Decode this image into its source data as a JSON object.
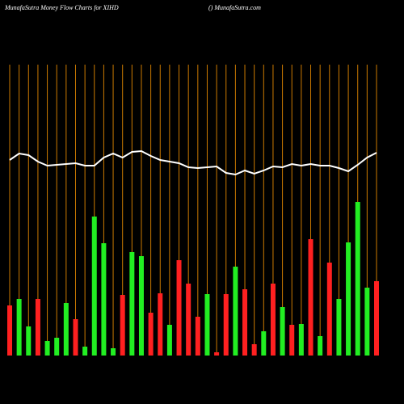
{
  "chart_data": {
    "type": "bar",
    "title": "MunafaSutra  Money Flow  Charts for XIHD",
    "subtitle": "() MunafaSutra.com",
    "ylim": [
      0,
      260
    ],
    "gridline_color": "#cc7a00",
    "series": [
      {
        "name": "Money Flow",
        "type": "bar",
        "values": [
          62,
          70,
          36,
          70,
          18,
          22,
          65,
          45,
          11,
          172,
          139,
          9,
          75,
          128,
          123,
          53,
          77,
          38,
          118,
          89,
          48,
          76,
          4,
          76,
          110,
          82,
          14,
          30,
          89,
          60,
          38,
          39,
          144,
          24,
          115,
          70,
          140,
          190,
          84,
          92
        ],
        "colors": [
          "#ff2020",
          "#22ee22",
          "#22ee22",
          "#ff2020",
          "#22ee22",
          "#22ee22",
          "#22ee22",
          "#ff2020",
          "#22ee22",
          "#22ee22",
          "#22ee22",
          "#22ee22",
          "#ff2020",
          "#22ee22",
          "#22ee22",
          "#ff2020",
          "#ff2020",
          "#22ee22",
          "#ff2020",
          "#ff2020",
          "#ff2020",
          "#22ee22",
          "#ff2020",
          "#ff2020",
          "#22ee22",
          "#ff2020",
          "#ff2020",
          "#22ee22",
          "#ff2020",
          "#22ee22",
          "#ff2020",
          "#22ee22",
          "#ff2020",
          "#22ee22",
          "#ff2020",
          "#22ee22",
          "#22ee22",
          "#22ee22",
          "#22ee22",
          "#ff2020"
        ]
      },
      {
        "name": "Price",
        "type": "line",
        "color": "#ffffff",
        "values": [
          242,
          250,
          248,
          240,
          235,
          236,
          237,
          238,
          235,
          235,
          245,
          250,
          245,
          252,
          253,
          247,
          242,
          240,
          238,
          233,
          232,
          233,
          234,
          226,
          224,
          229,
          225,
          229,
          234,
          233,
          237,
          235,
          237,
          235,
          235,
          232,
          228,
          236,
          245,
          251
        ]
      }
    ]
  }
}
